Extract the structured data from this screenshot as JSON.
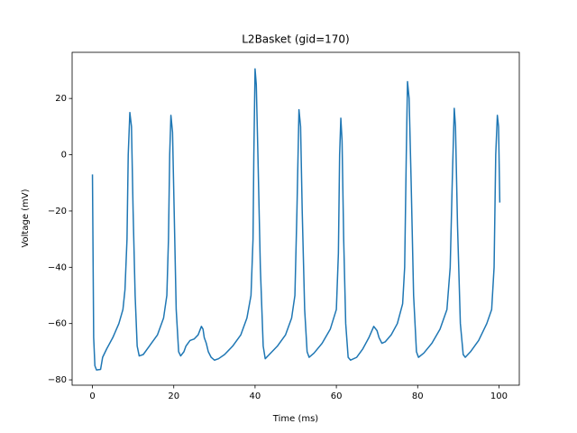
{
  "chart_data": {
    "type": "line",
    "title": "L2Basket (gid=170)",
    "xlabel": "Time (ms)",
    "ylabel": "Voltage (mV)",
    "color": "#1f77b4",
    "x": [
      0,
      0.3,
      0.6,
      1,
      2,
      2.5,
      3.5,
      5,
      6.5,
      7.5,
      8,
      8.5,
      8.8,
      9.2,
      9.6,
      10,
      10.5,
      11,
      11.5,
      12.5,
      14,
      16,
      17.5,
      18.3,
      18.7,
      19,
      19.3,
      19.7,
      20.1,
      20.6,
      21.2,
      21.7,
      22.5,
      23,
      24,
      25,
      26,
      26.8,
      27.2,
      27.5,
      28,
      28.5,
      29.2,
      30,
      31,
      32.5,
      34.5,
      36.5,
      38,
      39,
      39.5,
      39.7,
      40,
      40.3,
      40.7,
      41.3,
      42,
      42.5,
      43.5,
      45.5,
      47.5,
      49,
      49.8,
      50.3,
      50.8,
      51.2,
      51.6,
      52.2,
      52.8,
      53.3,
      54.5,
      56.5,
      58.5,
      60,
      60.5,
      60.8,
      61.1,
      61.4,
      61.8,
      62.3,
      62.9,
      63.5,
      65,
      66.5,
      68,
      69.2,
      70,
      70.5,
      71.2,
      72,
      73.5,
      75,
      76.3,
      76.8,
      77.2,
      77.5,
      77.9,
      78.4,
      79,
      79.7,
      80.2,
      81.5,
      83.5,
      85.5,
      87.2,
      88,
      88.5,
      89,
      89.3,
      89.8,
      90.5,
      91.2,
      91.7,
      93,
      95,
      97,
      98.2,
      98.8,
      99.2,
      99.6,
      99.9,
      100.2
    ],
    "values": [
      -7,
      -65,
      -75,
      -76.5,
      -76.3,
      -72,
      -69,
      -65,
      -60,
      -55,
      -48,
      -30,
      0,
      15,
      10,
      -20,
      -50,
      -68,
      -71.5,
      -71,
      -68,
      -64,
      -58,
      -50,
      -30,
      0,
      14,
      8,
      -20,
      -55,
      -70,
      -71.5,
      -70,
      -68,
      -66,
      -65.5,
      -64,
      -61,
      -62,
      -65,
      -67,
      -70,
      -72,
      -73,
      -72.5,
      -71,
      -68,
      -64,
      -58,
      -50,
      -30,
      0,
      30.5,
      25,
      0,
      -40,
      -68,
      -72.5,
      -71,
      -68,
      -64,
      -58,
      -50,
      -20,
      16,
      10,
      -20,
      -55,
      -70,
      -72,
      -70.5,
      -67,
      -62,
      -55,
      -35,
      0,
      13,
      5,
      -30,
      -60,
      -72,
      -73,
      -72,
      -69,
      -65,
      -61,
      -62.5,
      -65,
      -67,
      -66.5,
      -64,
      -60,
      -53,
      -40,
      0,
      26,
      20,
      -10,
      -50,
      -70,
      -72,
      -70.5,
      -67,
      -62,
      -55,
      -40,
      -10,
      16.5,
      10,
      -25,
      -60,
      -71,
      -72,
      -70,
      -66,
      -60,
      -55,
      -40,
      0,
      14,
      10,
      -17
    ],
    "xlim": [
      -5,
      105
    ],
    "xticks": [
      0,
      20,
      40,
      60,
      80,
      100
    ],
    "ylim": [
      -81.9,
      36.4
    ],
    "yticks": [
      {
        "value": -80,
        "label": "−80"
      },
      {
        "value": -60,
        "label": "−60"
      },
      {
        "value": -40,
        "label": "−40"
      },
      {
        "value": -20,
        "label": "−20"
      },
      0,
      20
    ]
  }
}
